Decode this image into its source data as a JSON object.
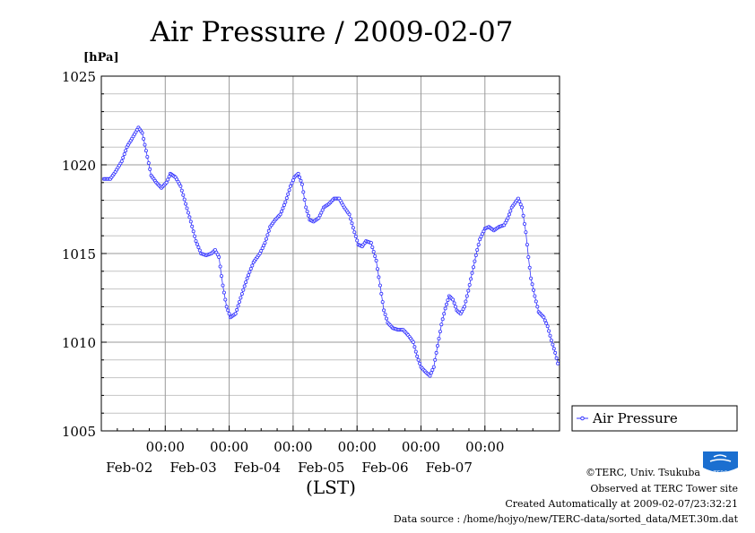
{
  "chart_data": {
    "type": "line",
    "title": "Air Pressure / 2009-02-07",
    "ylabel": "[hPa]",
    "xlabel": "(LST)",
    "ylim": [
      1005,
      1025
    ],
    "yticks": [
      "1025",
      "1020",
      "1015",
      "1010",
      "1005"
    ],
    "xticks": [
      {
        "time": "00:00",
        "date": "Feb-02"
      },
      {
        "time": "00:00",
        "date": "Feb-03"
      },
      {
        "time": "00:00",
        "date": "Feb-04"
      },
      {
        "time": "00:00",
        "date": "Feb-05"
      },
      {
        "time": "00:00",
        "date": "Feb-06"
      },
      {
        "time": "00:00",
        "date": "Feb-07"
      }
    ],
    "grid": true,
    "legend_position": "right",
    "series": [
      {
        "name": "Air Pressure",
        "color": "#3333ff",
        "x_unit": "days since 2009-02-01 00:00 LST",
        "points": [
          [
            0.04,
            1019.2
          ],
          [
            0.14,
            1019.2
          ],
          [
            0.22,
            1019.6
          ],
          [
            0.32,
            1020.2
          ],
          [
            0.4,
            1021.0
          ],
          [
            0.5,
            1021.6
          ],
          [
            0.58,
            1022.1
          ],
          [
            0.64,
            1021.8
          ],
          [
            0.7,
            1020.8
          ],
          [
            0.78,
            1019.4
          ],
          [
            0.86,
            1019.0
          ],
          [
            0.94,
            1018.7
          ],
          [
            1.02,
            1019.0
          ],
          [
            1.08,
            1019.5
          ],
          [
            1.16,
            1019.3
          ],
          [
            1.24,
            1018.8
          ],
          [
            1.32,
            1017.8
          ],
          [
            1.4,
            1016.8
          ],
          [
            1.48,
            1015.7
          ],
          [
            1.56,
            1015.0
          ],
          [
            1.64,
            1014.9
          ],
          [
            1.72,
            1015.0
          ],
          [
            1.78,
            1015.2
          ],
          [
            1.84,
            1014.8
          ],
          [
            1.9,
            1013.2
          ],
          [
            1.96,
            1012.0
          ],
          [
            2.02,
            1011.4
          ],
          [
            2.1,
            1011.6
          ],
          [
            2.18,
            1012.5
          ],
          [
            2.28,
            1013.6
          ],
          [
            2.38,
            1014.5
          ],
          [
            2.48,
            1015.0
          ],
          [
            2.56,
            1015.6
          ],
          [
            2.64,
            1016.5
          ],
          [
            2.72,
            1016.9
          ],
          [
            2.8,
            1017.2
          ],
          [
            2.88,
            1017.9
          ],
          [
            2.96,
            1018.8
          ],
          [
            3.02,
            1019.3
          ],
          [
            3.08,
            1019.5
          ],
          [
            3.14,
            1018.9
          ],
          [
            3.2,
            1017.6
          ],
          [
            3.26,
            1016.9
          ],
          [
            3.32,
            1016.8
          ],
          [
            3.4,
            1017.0
          ],
          [
            3.48,
            1017.6
          ],
          [
            3.56,
            1017.8
          ],
          [
            3.64,
            1018.1
          ],
          [
            3.72,
            1018.1
          ],
          [
            3.8,
            1017.6
          ],
          [
            3.88,
            1017.2
          ],
          [
            3.96,
            1016.2
          ],
          [
            4.02,
            1015.5
          ],
          [
            4.08,
            1015.4
          ],
          [
            4.14,
            1015.7
          ],
          [
            4.22,
            1015.6
          ],
          [
            4.3,
            1014.6
          ],
          [
            4.36,
            1013.2
          ],
          [
            4.42,
            1011.8
          ],
          [
            4.48,
            1011.1
          ],
          [
            4.56,
            1010.8
          ],
          [
            4.64,
            1010.7
          ],
          [
            4.72,
            1010.7
          ],
          [
            4.8,
            1010.4
          ],
          [
            4.88,
            1010.0
          ],
          [
            4.94,
            1009.2
          ],
          [
            5.0,
            1008.6
          ],
          [
            5.08,
            1008.3
          ],
          [
            5.14,
            1008.1
          ],
          [
            5.2,
            1008.6
          ],
          [
            5.26,
            1009.8
          ],
          [
            5.32,
            1011.0
          ],
          [
            5.38,
            1011.9
          ],
          [
            5.44,
            1012.6
          ],
          [
            5.5,
            1012.4
          ],
          [
            5.56,
            1011.8
          ],
          [
            5.62,
            1011.6
          ],
          [
            5.68,
            1012.0
          ],
          [
            5.74,
            1012.9
          ],
          [
            5.8,
            1013.9
          ],
          [
            5.86,
            1014.9
          ],
          [
            5.92,
            1015.8
          ],
          [
            6.0,
            1016.4
          ],
          [
            6.06,
            1016.5
          ],
          [
            6.14,
            1016.3
          ],
          [
            6.22,
            1016.5
          ],
          [
            6.3,
            1016.6
          ],
          [
            6.36,
            1017.0
          ],
          [
            6.42,
            1017.6
          ],
          [
            6.48,
            1017.9
          ],
          [
            6.52,
            1018.1
          ],
          [
            6.58,
            1017.6
          ],
          [
            6.64,
            1016.2
          ],
          [
            6.68,
            1014.8
          ],
          [
            6.72,
            1013.6
          ],
          [
            6.78,
            1012.6
          ],
          [
            6.84,
            1011.7
          ],
          [
            6.92,
            1011.4
          ],
          [
            6.98,
            1010.9
          ],
          [
            7.04,
            1010.1
          ],
          [
            7.1,
            1009.4
          ],
          [
            7.14,
            1008.8
          ]
        ]
      }
    ]
  },
  "footer": {
    "credit": "©TERC, Univ. Tsukuba",
    "observed": "Observed at TERC Tower site",
    "created": "Created Automatically at 2009-02-07/23:32:21",
    "source": "Data source : /home/hojyo/new/TERC-data/sorted_data/MET.30m.dat",
    "logo_text": "TERC"
  }
}
